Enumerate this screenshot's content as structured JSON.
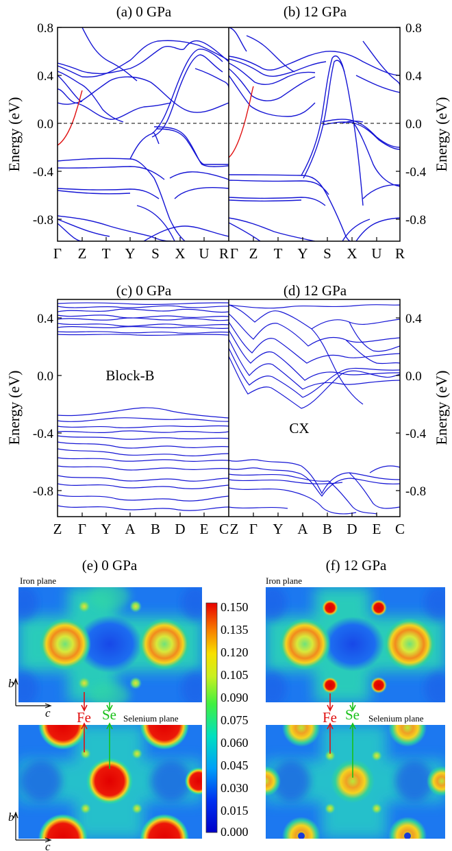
{
  "panels": {
    "a": {
      "title": "(a) 0 GPa"
    },
    "b": {
      "title": "(b) 12 GPa"
    },
    "c": {
      "title": "(c) 0 GPa",
      "inner_label": "Block-B"
    },
    "d": {
      "title": "(d) 12 GPa",
      "inner_label": "CX"
    },
    "e": {
      "title": "(e) 0 GPa"
    },
    "f": {
      "title": "(f) 12 GPa"
    }
  },
  "ylabel": "Energy (eV)",
  "top_kpoints": [
    "Γ",
    "Z",
    "T",
    "Y",
    "S",
    "X",
    "U",
    "R"
  ],
  "mid_kpoints": [
    "Z",
    "Γ",
    "Y",
    "A",
    "B",
    "D",
    "E",
    "C"
  ],
  "top_yticks": [
    "0.8",
    "0.4",
    "0.0",
    "-0.4",
    "-0.8"
  ],
  "mid_yticks": [
    "0.4",
    "0.0",
    "-0.4",
    "-0.8"
  ],
  "maps": {
    "iron_plane": "Iron plane",
    "selenium_plane": "Selenium plane",
    "fe": "Fe",
    "se": "Se",
    "axis_b": "b",
    "axis_c": "c"
  },
  "colorbar": {
    "ticks": [
      "0.150",
      "0.135",
      "0.120",
      "0.105",
      "0.090",
      "0.075",
      "0.060",
      "0.045",
      "0.030",
      "0.015",
      "0.000"
    ],
    "min": 0.0,
    "max": 0.15
  },
  "colors": {
    "bands": "#1414d4",
    "highlight": "#e01010",
    "fe": "#e01010",
    "se": "#18c018"
  },
  "chart_data": [
    {
      "type": "line",
      "title": "(a) 0 GPa",
      "ylabel": "Energy (eV)",
      "ylim": [
        -1.0,
        0.8
      ],
      "x_ticks": [
        "Γ",
        "Z",
        "T",
        "Y",
        "S",
        "X",
        "U",
        "R"
      ],
      "fermi_level": 0.0
    },
    {
      "type": "line",
      "title": "(b) 12 GPa",
      "ylabel": "Energy (eV)",
      "ylim": [
        -1.0,
        0.8
      ],
      "x_ticks": [
        "Γ",
        "Z",
        "T",
        "Y",
        "S",
        "X",
        "U",
        "R"
      ],
      "fermi_level": 0.0
    },
    {
      "type": "line",
      "title": "(c) 0 GPa",
      "ylabel": "Energy (eV)",
      "ylim": [
        -1.0,
        0.5
      ],
      "x_ticks": [
        "Z",
        "Γ",
        "Y",
        "A",
        "B",
        "D",
        "E",
        "C"
      ]
    },
    {
      "type": "line",
      "title": "(d) 12 GPa",
      "ylabel": "Energy (eV)",
      "ylim": [
        -1.0,
        0.5
      ],
      "x_ticks": [
        "Z",
        "Γ",
        "Y",
        "A",
        "B",
        "D",
        "E",
        "C"
      ]
    }
  ]
}
